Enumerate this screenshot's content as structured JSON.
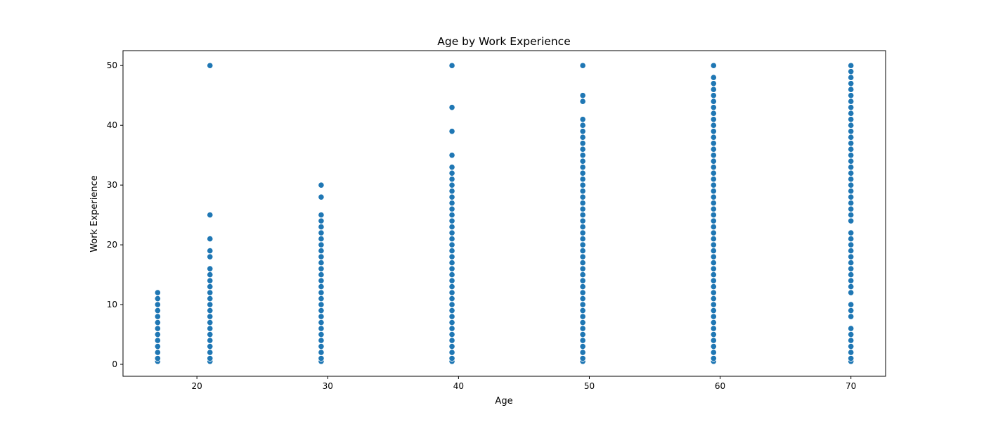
{
  "chart_data": {
    "type": "scatter",
    "title": "Age by Work Experience",
    "xlabel": "Age",
    "ylabel": "Work Experience",
    "xlim": [
      14.35,
      72.65
    ],
    "ylim": [
      -2,
      52.5
    ],
    "xticks": [
      20,
      30,
      40,
      50,
      60,
      70
    ],
    "yticks": [
      0,
      10,
      20,
      30,
      40,
      50
    ],
    "grid": false,
    "marker_color": "#1f77b4",
    "columns": [
      {
        "x": 17,
        "y": [
          0.5,
          1,
          2,
          3,
          4,
          5,
          6,
          7,
          8,
          9,
          10,
          11,
          12
        ]
      },
      {
        "x": 21,
        "y": [
          0.5,
          1,
          2,
          3,
          4,
          5,
          6,
          7,
          8,
          9,
          10,
          11,
          12,
          13,
          14,
          15,
          16,
          18,
          19,
          21,
          25,
          50
        ]
      },
      {
        "x": 29.5,
        "y": [
          0.5,
          1,
          2,
          3,
          4,
          5,
          6,
          7,
          8,
          9,
          10,
          11,
          12,
          13,
          14,
          15,
          16,
          17,
          18,
          19,
          20,
          21,
          22,
          23,
          24,
          25,
          28,
          30
        ]
      },
      {
        "x": 39.5,
        "y": [
          0.5,
          1,
          2,
          3,
          4,
          5,
          6,
          7,
          8,
          9,
          10,
          11,
          12,
          13,
          14,
          15,
          16,
          17,
          18,
          19,
          20,
          21,
          22,
          23,
          24,
          25,
          26,
          27,
          28,
          29,
          30,
          31,
          32,
          33,
          35,
          39,
          43,
          50
        ]
      },
      {
        "x": 49.5,
        "y": [
          0.5,
          1,
          2,
          3,
          4,
          5,
          6,
          7,
          8,
          9,
          10,
          11,
          12,
          13,
          14,
          15,
          16,
          17,
          18,
          19,
          20,
          21,
          22,
          23,
          24,
          25,
          26,
          27,
          28,
          29,
          30,
          31,
          32,
          33,
          34,
          35,
          36,
          37,
          38,
          39,
          40,
          41,
          44,
          45,
          50
        ]
      },
      {
        "x": 59.5,
        "y": [
          0.5,
          1,
          2,
          3,
          4,
          5,
          6,
          7,
          8,
          9,
          10,
          11,
          12,
          13,
          14,
          15,
          16,
          17,
          18,
          19,
          20,
          21,
          22,
          23,
          24,
          25,
          26,
          27,
          28,
          29,
          30,
          31,
          32,
          33,
          34,
          35,
          36,
          37,
          38,
          39,
          40,
          41,
          42,
          43,
          44,
          45,
          46,
          47,
          48,
          50
        ]
      },
      {
        "x": 70,
        "y": [
          0.5,
          1,
          2,
          3,
          4,
          5,
          6,
          8,
          9,
          10,
          12,
          13,
          14,
          15,
          16,
          17,
          18,
          19,
          20,
          21,
          22,
          24,
          25,
          26,
          27,
          28,
          29,
          30,
          31,
          32,
          33,
          34,
          35,
          36,
          37,
          38,
          39,
          40,
          41,
          42,
          43,
          44,
          45,
          46,
          47,
          48,
          49,
          50
        ]
      }
    ]
  }
}
